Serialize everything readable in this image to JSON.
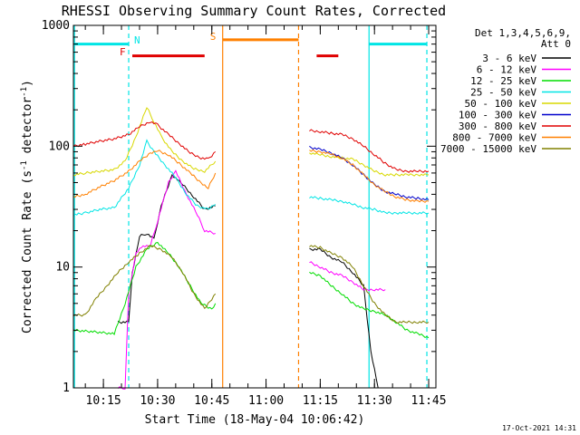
{
  "chart_data": {
    "type": "line",
    "title": "RHESSI Observing Summary Count Rates, Corrected",
    "xlabel": "Start Time (18-May-04 10:06:42)",
    "ylabel": "Corrected Count Rate (s⁻¹ detector⁻¹)",
    "ylabel_main": "Corrected Count Rate (s",
    "ylabel_sup1": "-1",
    "ylabel_mid": " detector",
    "ylabel_sup2": "-1",
    "ylabel_end": ")",
    "yscale": "log",
    "ylim": [
      1,
      1000
    ],
    "xlim": [
      "10:06:42",
      "11:47:00"
    ],
    "x_ticks": [
      "10:15",
      "10:30",
      "10:45",
      "11:00",
      "11:15",
      "11:30",
      "11:45"
    ],
    "y_ticks": [
      "1",
      "10",
      "100",
      "1000"
    ],
    "legend_placement": "right",
    "legend_header": [
      "Det 1,3,4,5,6,9,",
      "Att 0"
    ],
    "footer_date": "17-Oct-2021 14:31",
    "markers": {
      "N": "N",
      "F": "F",
      "S": "S"
    },
    "vertical_lines": [
      {
        "time": "10:07:00",
        "color": "#00e5e5",
        "style": "solid"
      },
      {
        "time": "10:22:00",
        "color": "#00e5e5",
        "style": "dashed"
      },
      {
        "time": "10:48:00",
        "color": "#ff8000",
        "style": "solid"
      },
      {
        "time": "11:09:00",
        "color": "#ff8000",
        "style": "dashed"
      },
      {
        "time": "11:28:30",
        "color": "#00e5e5",
        "style": "solid"
      },
      {
        "time": "11:44:30",
        "color": "#00e5e5",
        "style": "dashed"
      }
    ],
    "flag_bars": [
      {
        "label": "N",
        "color": "#00e5e5",
        "start": "10:07:00",
        "end": "10:22:00",
        "y": 700
      },
      {
        "label": "F",
        "color": "#e00000",
        "start": "10:23:00",
        "end": "10:43:00",
        "y": 560
      },
      {
        "label": "S",
        "color": "#ff8000",
        "start": "10:48:00",
        "end": "11:09:00",
        "y": 760
      },
      {
        "label": "",
        "color": "#e00000",
        "start": "11:14:00",
        "end": "11:20:00",
        "y": 560
      },
      {
        "label": "",
        "color": "#00e5e5",
        "start": "11:28:30",
        "end": "11:44:30",
        "y": 700
      }
    ],
    "series": [
      {
        "name": "3 - 6 keV",
        "color": "#000000",
        "segments": [
          {
            "t": [
              "10:19:00",
              "10:22:00",
              "10:23:00",
              "10:25:00",
              "10:27:00",
              "10:29:00",
              "10:31:00",
              "10:34:00",
              "10:37:00",
              "10:40:00",
              "10:43:00",
              "10:46:00"
            ],
            "v": [
              3.5,
              3.5,
              9,
              18,
              19,
              17,
              32,
              58,
              48,
              38,
              30,
              32
            ]
          },
          {
            "t": [
              "11:12:00",
              "11:15:00",
              "11:18:00",
              "11:21:00",
              "11:24:00",
              "11:27:00",
              "11:29:00",
              "11:31:00"
            ],
            "v": [
              14,
              14,
              12,
              11,
              9,
              7,
              2,
              1
            ]
          }
        ]
      },
      {
        "name": "6 - 12 keV",
        "color": "#ff00ff",
        "segments": [
          {
            "t": [
              "10:19:00",
              "10:21:00",
              "10:22:00",
              "10:24:00",
              "10:26:00",
              "10:28:00",
              "10:30:00",
              "10:33:00",
              "10:35:00",
              "10:38:00",
              "10:41:00",
              "10:43:00",
              "10:46:00"
            ],
            "v": [
              1,
              1,
              6,
              13,
              15,
              15,
              24,
              50,
              62,
              40,
              27,
              20,
              19
            ]
          },
          {
            "t": [
              "11:12:00",
              "11:15:00",
              "11:18:00",
              "11:21:00",
              "11:24:00",
              "11:27:00",
              "11:30:00",
              "11:33:00"
            ],
            "v": [
              11,
              10,
              9,
              8.5,
              7.5,
              6.5,
              6.5,
              6.5
            ]
          }
        ]
      },
      {
        "name": "12 - 25 keV",
        "color": "#00dd00",
        "segments": [
          {
            "t": [
              "10:06:42",
              "10:13:00",
              "10:18:00",
              "10:21:00",
              "10:24:00",
              "10:27:00",
              "10:30:00",
              "10:33:00",
              "10:36:00",
              "10:39:00",
              "10:42:00",
              "10:45:00",
              "10:46:00"
            ],
            "v": [
              3,
              2.9,
              2.8,
              5,
              10,
              14,
              16,
              13,
              10,
              7,
              5,
              4.5,
              5
            ]
          },
          {
            "t": [
              "11:12:00",
              "11:15:00",
              "11:18:00",
              "11:21:00",
              "11:24:00",
              "11:27:00",
              "11:30:00",
              "11:33:00",
              "11:36:00",
              "11:39:00",
              "11:42:00",
              "11:45:00"
            ],
            "v": [
              9,
              8.5,
              7,
              6,
              5,
              4.5,
              4.3,
              4,
              3.5,
              3,
              2.8,
              2.6
            ]
          }
        ]
      },
      {
        "name": "25 - 50 keV",
        "color": "#00e5e5",
        "segments": [
          {
            "t": [
              "10:06:42",
              "10:10:00",
              "10:14:00",
              "10:18:00",
              "10:22:00",
              "10:25:00",
              "10:27:00",
              "10:29:00",
              "10:32:00",
              "10:35:00",
              "10:38:00",
              "10:41:00",
              "10:44:00",
              "10:46:00"
            ],
            "v": [
              27,
              28,
              30,
              31,
              45,
              70,
              110,
              90,
              70,
              55,
              40,
              32,
              30,
              33
            ]
          },
          {
            "t": [
              "11:12:00",
              "11:15:00",
              "11:18:00",
              "11:21:00",
              "11:24:00",
              "11:27:00",
              "11:30:00",
              "11:33:00",
              "11:36:00",
              "11:39:00",
              "11:42:00",
              "11:45:00"
            ],
            "v": [
              38,
              37,
              36,
              35,
              33,
              31,
              30,
              28,
              28,
              28,
              28,
              28
            ]
          }
        ]
      },
      {
        "name": "50 - 100 keV",
        "color": "#d8d800",
        "segments": [
          {
            "t": [
              "10:06:42",
              "10:10:00",
              "10:14:00",
              "10:18:00",
              "10:21:00",
              "10:24:00",
              "10:27:00",
              "10:29:00",
              "10:31:00",
              "10:34:00",
              "10:37:00",
              "10:40:00",
              "10:43:00",
              "10:46:00"
            ],
            "v": [
              58,
              60,
              62,
              64,
              75,
              120,
              210,
              160,
              120,
              90,
              75,
              65,
              62,
              75
            ]
          },
          {
            "t": [
              "11:12:00",
              "11:15:00",
              "11:18:00",
              "11:21:00",
              "11:24:00",
              "11:27:00",
              "11:30:00",
              "11:33:00",
              "11:36:00",
              "11:39:00",
              "11:42:00",
              "11:45:00"
            ],
            "v": [
              88,
              85,
              82,
              80,
              78,
              70,
              62,
              58,
              58,
              58,
              58,
              58
            ]
          }
        ]
      },
      {
        "name": "100 - 300 keV",
        "color": "#0000cc",
        "segments": [
          {
            "t": [
              "11:12:00",
              "11:15:00",
              "11:18:00",
              "11:21:00",
              "11:24:00",
              "11:27:00",
              "11:30:00",
              "11:33:00",
              "11:36:00",
              "11:39:00",
              "11:42:00",
              "11:45:00"
            ],
            "v": [
              98,
              94,
              88,
              80,
              70,
              58,
              48,
              42,
              40,
              38,
              37,
              36
            ]
          }
        ]
      },
      {
        "name": "300 - 800 keV",
        "color": "#e00000",
        "segments": [
          {
            "t": [
              "10:06:42",
              "10:10:00",
              "10:14:00",
              "10:18:00",
              "10:22:00",
              "10:25:00",
              "10:28:00",
              "10:30:00",
              "10:33:00",
              "10:36:00",
              "10:39:00",
              "10:42:00",
              "10:44:00",
              "10:46:00"
            ],
            "v": [
              100,
              104,
              110,
              115,
              125,
              145,
              160,
              150,
              125,
              105,
              88,
              80,
              78,
              90
            ]
          },
          {
            "t": [
              "11:12:00",
              "11:15:00",
              "11:18:00",
              "11:21:00",
              "11:24:00",
              "11:27:00",
              "11:30:00",
              "11:33:00",
              "11:36:00",
              "11:39:00",
              "11:42:00",
              "11:45:00"
            ],
            "v": [
              135,
              132,
              128,
              125,
              115,
              100,
              85,
              72,
              64,
              62,
              62,
              62
            ]
          }
        ]
      },
      {
        "name": "800 - 7000 keV",
        "color": "#ff8000",
        "segments": [
          {
            "t": [
              "10:06:42",
              "10:10:00",
              "10:14:00",
              "10:18:00",
              "10:22:00",
              "10:25:00",
              "10:28:00",
              "10:30:00",
              "10:33:00",
              "10:36:00",
              "10:39:00",
              "10:42:00",
              "10:44:00",
              "10:46:00"
            ],
            "v": [
              38,
              40,
              46,
              52,
              62,
              75,
              88,
              92,
              85,
              72,
              60,
              50,
              45,
              60
            ]
          },
          {
            "t": [
              "11:12:00",
              "11:15:00",
              "11:18:00",
              "11:21:00",
              "11:24:00",
              "11:27:00",
              "11:30:00",
              "11:33:00",
              "11:36:00",
              "11:39:00",
              "11:42:00",
              "11:45:00"
            ],
            "v": [
              92,
              90,
              86,
              80,
              70,
              58,
              48,
              42,
              38,
              36,
              35,
              35
            ]
          }
        ]
      },
      {
        "name": "7000 - 15000 keV",
        "color": "#808000",
        "segments": [
          {
            "t": [
              "10:06:42",
              "10:10:00",
              "10:13:00",
              "10:16:00",
              "10:19:00",
              "10:22:00",
              "10:25:00",
              "10:28:00",
              "10:31:00",
              "10:34:00",
              "10:37:00",
              "10:40:00",
              "10:43:00",
              "10:46:00"
            ],
            "v": [
              4,
              4,
              5.5,
              7,
              9,
              11,
              13,
              15,
              14,
              12,
              9,
              6,
              4.5,
              6
            ]
          },
          {
            "t": [
              "11:12:00",
              "11:15:00",
              "11:18:00",
              "11:21:00",
              "11:24:00",
              "11:27:00",
              "11:30:00",
              "11:33:00",
              "11:36:00",
              "11:39:00",
              "11:42:00",
              "11:45:00"
            ],
            "v": [
              15,
              14.5,
              13,
              12,
              10,
              7,
              5,
              4,
              3.5,
              3.5,
              3.5,
              3.5
            ]
          }
        ]
      }
    ]
  }
}
